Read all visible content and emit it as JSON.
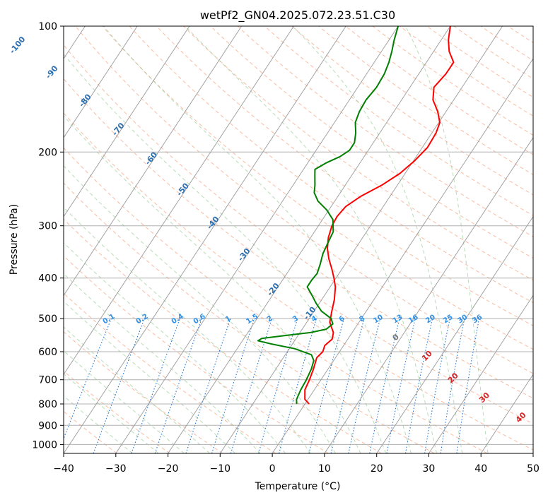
{
  "chart_data": {
    "type": "line",
    "title": "wetPf2_GN04.2025.072.23.51.C30",
    "xlabel": "Temperature (°C)",
    "ylabel": "Pressure (hPa)",
    "xlim": [
      -40,
      50
    ],
    "ylim": [
      1050,
      100
    ],
    "y_scale": "log",
    "grid": true,
    "x_ticks": [
      "−40",
      "−30",
      "−20",
      "−10",
      "0",
      "10",
      "20",
      "30",
      "40",
      "50"
    ],
    "y_ticks": [
      {
        "p": 1000,
        "label": "1000"
      },
      {
        "p": 900,
        "label": "900"
      },
      {
        "p": 800,
        "label": "800"
      },
      {
        "p": 700,
        "label": "700"
      },
      {
        "p": 600,
        "label": "600"
      },
      {
        "p": 500,
        "label": "500"
      },
      {
        "p": 400,
        "label": "400"
      },
      {
        "p": 300,
        "label": "300"
      },
      {
        "p": 200,
        "label": "200"
      },
      {
        "p": 100,
        "label": "100"
      }
    ],
    "dry_adiabat_labels": [
      "-100",
      "-90",
      "-80",
      "-70",
      "-60",
      "-50",
      "-40",
      "-30",
      "-20",
      "-10"
    ],
    "moist_adiabat_labels": [
      "0",
      "10",
      "20",
      "30",
      "40"
    ],
    "mixing_ratio_labels": [
      "0.1",
      "0.2",
      "0.4",
      "0.6",
      "1",
      "1.5",
      "2",
      "3",
      "4",
      "6",
      "8",
      "10",
      "13",
      "16",
      "20",
      "25",
      "30",
      "36"
    ],
    "series": [
      {
        "color": "#ff0000",
        "points": [
          {
            "p": 800,
            "t": 0.8
          },
          {
            "p": 780,
            "t": -0.6
          },
          {
            "p": 740,
            "t": -1.8
          },
          {
            "p": 700,
            "t": -2.2
          },
          {
            "p": 660,
            "t": -2.8
          },
          {
            "p": 620,
            "t": -3.6
          },
          {
            "p": 600,
            "t": -3.2
          },
          {
            "p": 580,
            "t": -3.6
          },
          {
            "p": 560,
            "t": -3.0
          },
          {
            "p": 540,
            "t": -3.6
          },
          {
            "p": 525,
            "t": -4.6
          },
          {
            "p": 510,
            "t": -5.6
          },
          {
            "p": 480,
            "t": -6.6
          },
          {
            "p": 450,
            "t": -7.6
          },
          {
            "p": 420,
            "t": -9.0
          },
          {
            "p": 400,
            "t": -10.4
          },
          {
            "p": 380,
            "t": -12.0
          },
          {
            "p": 360,
            "t": -13.8
          },
          {
            "p": 340,
            "t": -15.4
          },
          {
            "p": 320,
            "t": -16.6
          },
          {
            "p": 300,
            "t": -17.4
          },
          {
            "p": 285,
            "t": -17.6
          },
          {
            "p": 270,
            "t": -17.2
          },
          {
            "p": 255,
            "t": -15.6
          },
          {
            "p": 240,
            "t": -13.0
          },
          {
            "p": 225,
            "t": -11.0
          },
          {
            "p": 210,
            "t": -9.8
          },
          {
            "p": 195,
            "t": -9.0
          },
          {
            "p": 180,
            "t": -9.2
          },
          {
            "p": 170,
            "t": -9.8
          },
          {
            "p": 160,
            "t": -11.6
          },
          {
            "p": 150,
            "t": -14.0
          },
          {
            "p": 140,
            "t": -15.4
          },
          {
            "p": 130,
            "t": -14.8
          },
          {
            "p": 122,
            "t": -14.8
          },
          {
            "p": 115,
            "t": -17.0
          },
          {
            "p": 108,
            "t": -18.6
          },
          {
            "p": 100,
            "t": -20.0
          }
        ]
      },
      {
        "color": "#008000",
        "points": [
          {
            "p": 800,
            "t": -1.6
          },
          {
            "p": 780,
            "t": -2.2
          },
          {
            "p": 740,
            "t": -2.6
          },
          {
            "p": 700,
            "t": -2.8
          },
          {
            "p": 660,
            "t": -3.2
          },
          {
            "p": 630,
            "t": -3.8
          },
          {
            "p": 610,
            "t": -5.0
          },
          {
            "p": 590,
            "t": -9.0
          },
          {
            "p": 575,
            "t": -14.0
          },
          {
            "p": 565,
            "t": -17.0
          },
          {
            "p": 558,
            "t": -16.6
          },
          {
            "p": 550,
            "t": -13.0
          },
          {
            "p": 540,
            "t": -8.0
          },
          {
            "p": 530,
            "t": -5.4
          },
          {
            "p": 515,
            "t": -4.8
          },
          {
            "p": 500,
            "t": -5.8
          },
          {
            "p": 480,
            "t": -8.6
          },
          {
            "p": 460,
            "t": -10.6
          },
          {
            "p": 440,
            "t": -12.4
          },
          {
            "p": 420,
            "t": -14.4
          },
          {
            "p": 405,
            "t": -14.4
          },
          {
            "p": 390,
            "t": -14.2
          },
          {
            "p": 370,
            "t": -14.8
          },
          {
            "p": 350,
            "t": -15.6
          },
          {
            "p": 330,
            "t": -16.0
          },
          {
            "p": 310,
            "t": -16.4
          },
          {
            "p": 290,
            "t": -18.0
          },
          {
            "p": 275,
            "t": -20.4
          },
          {
            "p": 262,
            "t": -23.2
          },
          {
            "p": 250,
            "t": -25.0
          },
          {
            "p": 240,
            "t": -25.8
          },
          {
            "p": 228,
            "t": -27.0
          },
          {
            "p": 220,
            "t": -27.8
          },
          {
            "p": 212,
            "t": -26.4
          },
          {
            "p": 205,
            "t": -24.6
          },
          {
            "p": 198,
            "t": -23.6
          },
          {
            "p": 190,
            "t": -23.6
          },
          {
            "p": 180,
            "t": -24.6
          },
          {
            "p": 170,
            "t": -26.0
          },
          {
            "p": 160,
            "t": -26.6
          },
          {
            "p": 150,
            "t": -26.8
          },
          {
            "p": 140,
            "t": -26.4
          },
          {
            "p": 130,
            "t": -26.6
          },
          {
            "p": 122,
            "t": -27.2
          },
          {
            "p": 115,
            "t": -28.0
          },
          {
            "p": 108,
            "t": -29.0
          },
          {
            "p": 100,
            "t": -30.0
          }
        ]
      }
    ]
  }
}
